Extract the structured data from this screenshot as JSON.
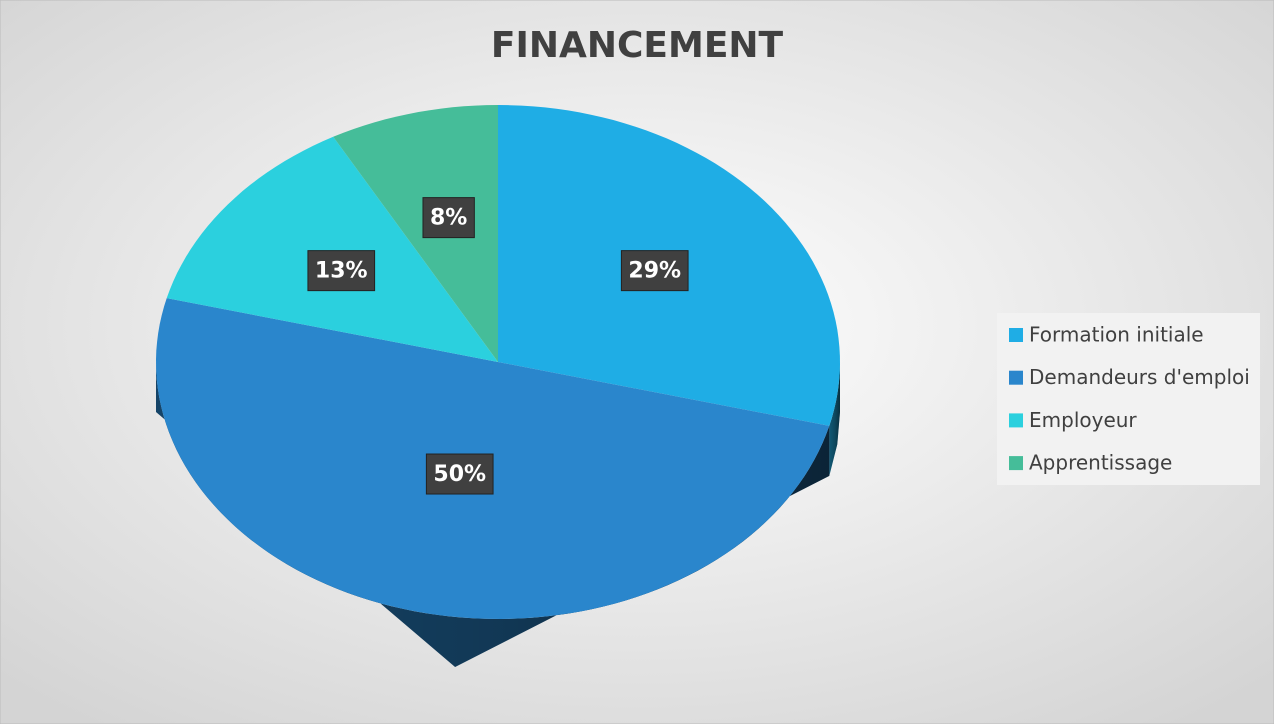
{
  "chart_data": {
    "type": "pie",
    "title": "FINANCEMENT",
    "categories": [
      "Formation initiale",
      "Demandeurs d'emploi",
      "Employeur",
      "Apprentissage"
    ],
    "values": [
      29,
      50,
      13,
      8
    ],
    "value_labels": [
      "29%",
      "50%",
      "13%",
      "8%"
    ],
    "colors": [
      "#1fade5",
      "#2a86cc",
      "#2bd0de",
      "#45bd99"
    ],
    "legend": "right"
  }
}
